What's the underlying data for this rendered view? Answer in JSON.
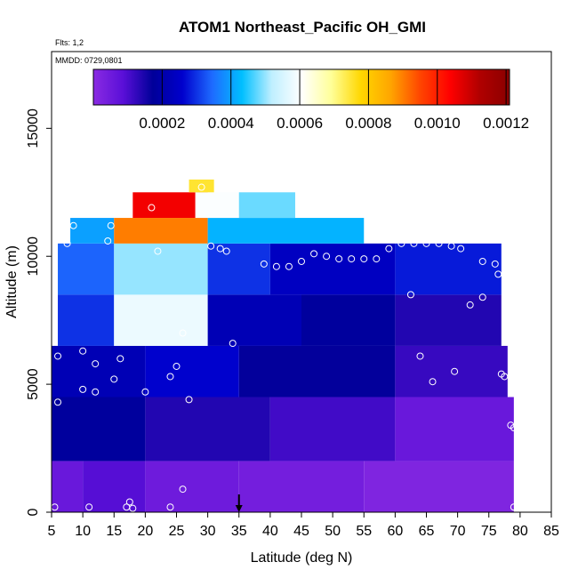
{
  "chart_data": {
    "type": "heatmap",
    "title": "ATOM1 Northeast_Pacific OH_GMI",
    "annotations": [
      "Flts: 1,2",
      "MMDD: 0729,0801"
    ],
    "xlabel": "Latitude (deg N)",
    "ylabel": "Altitude (m)",
    "xlim": [
      5,
      85
    ],
    "ylim": [
      0,
      18000
    ],
    "x_ticks": [
      "5",
      "10",
      "15",
      "20",
      "25",
      "30",
      "35",
      "40",
      "45",
      "50",
      "55",
      "60",
      "65",
      "70",
      "75",
      "80",
      "85"
    ],
    "y_ticks": [
      "0",
      "5000",
      "10000",
      "15000"
    ],
    "colorbar": {
      "range": [
        0,
        0.00121
      ],
      "tick_labels": [
        "0.0002",
        "0.0004",
        "0.0006",
        "0.0008",
        "0.0010",
        "0.0012"
      ],
      "tick_values": [
        0.0002,
        0.0004,
        0.0006,
        0.0008,
        0.001,
        0.0012
      ],
      "colors": [
        "#8a2be2",
        "#5a0fd8",
        "#000099",
        "#0000cd",
        "#1e6bff",
        "#00bfff",
        "#bfefff",
        "#ffffff",
        "#ffff99",
        "#ffd700",
        "#ffa500",
        "#ff4500",
        "#ff0000",
        "#b00000",
        "#8b0000"
      ]
    },
    "grid": false,
    "flight_marker_latitude": 35,
    "cells": [
      {
        "lat": [
          5,
          10
        ],
        "alt": [
          0,
          2000
        ],
        "value": 6e-05
      },
      {
        "lat": [
          10,
          20
        ],
        "alt": [
          0,
          2000
        ],
        "value": 9e-05
      },
      {
        "lat": [
          20,
          35
        ],
        "alt": [
          0,
          2000
        ],
        "value": 5e-05
      },
      {
        "lat": [
          35,
          55
        ],
        "alt": [
          0,
          2000
        ],
        "value": 4e-05
      },
      {
        "lat": [
          55,
          79
        ],
        "alt": [
          0,
          2000
        ],
        "value": 2e-05
      },
      {
        "lat": [
          5,
          20
        ],
        "alt": [
          2000,
          4500
        ],
        "value": 0.00018
      },
      {
        "lat": [
          20,
          40
        ],
        "alt": [
          2000,
          4500
        ],
        "value": 0.00014
      },
      {
        "lat": [
          40,
          60
        ],
        "alt": [
          2000,
          4500
        ],
        "value": 0.00011
      },
      {
        "lat": [
          60,
          79
        ],
        "alt": [
          2000,
          4500
        ],
        "value": 6e-05
      },
      {
        "lat": [
          5,
          20
        ],
        "alt": [
          4500,
          6500
        ],
        "value": 0.00022
      },
      {
        "lat": [
          20,
          35
        ],
        "alt": [
          4500,
          6500
        ],
        "value": 0.00026
      },
      {
        "lat": [
          35,
          60
        ],
        "alt": [
          4500,
          6500
        ],
        "value": 0.00017
      },
      {
        "lat": [
          60,
          78
        ],
        "alt": [
          4500,
          6500
        ],
        "value": 0.00012
      },
      {
        "lat": [
          6,
          15
        ],
        "alt": [
          6500,
          8500
        ],
        "value": 0.0003
      },
      {
        "lat": [
          15,
          30
        ],
        "alt": [
          6500,
          8500
        ],
        "value": 0.00058
      },
      {
        "lat": [
          30,
          45
        ],
        "alt": [
          6500,
          8500
        ],
        "value": 0.00022
      },
      {
        "lat": [
          45,
          60
        ],
        "alt": [
          6500,
          8500
        ],
        "value": 0.00018
      },
      {
        "lat": [
          60,
          77
        ],
        "alt": [
          6500,
          8500
        ],
        "value": 0.00014
      },
      {
        "lat": [
          6,
          15
        ],
        "alt": [
          8500,
          10500
        ],
        "value": 0.00034
      },
      {
        "lat": [
          15,
          30
        ],
        "alt": [
          8500,
          10500
        ],
        "value": 0.0005
      },
      {
        "lat": [
          30,
          40
        ],
        "alt": [
          8500,
          10500
        ],
        "value": 0.0003
      },
      {
        "lat": [
          40,
          60
        ],
        "alt": [
          8500,
          10500
        ],
        "value": 0.00024
      },
      {
        "lat": [
          60,
          77
        ],
        "alt": [
          8500,
          10500
        ],
        "value": 0.00028
      },
      {
        "lat": [
          8,
          15
        ],
        "alt": [
          10500,
          11500
        ],
        "value": 0.0004
      },
      {
        "lat": [
          15,
          30
        ],
        "alt": [
          10500,
          11500
        ],
        "value": 0.0009
      },
      {
        "lat": [
          30,
          55
        ],
        "alt": [
          10500,
          11500
        ],
        "value": 0.00042
      },
      {
        "lat": [
          18,
          30
        ],
        "alt": [
          11500,
          12500
        ],
        "value": 0.00105
      },
      {
        "lat": [
          28,
          35
        ],
        "alt": [
          11500,
          12500
        ],
        "value": 0.0006
      },
      {
        "lat": [
          35,
          44
        ],
        "alt": [
          11500,
          12500
        ],
        "value": 0.00048
      },
      {
        "lat": [
          27,
          31
        ],
        "alt": [
          12500,
          13000
        ],
        "value": 0.00075
      }
    ],
    "points": [
      {
        "lat": 5.5,
        "alt": 200
      },
      {
        "lat": 11,
        "alt": 200
      },
      {
        "lat": 17,
        "alt": 200
      },
      {
        "lat": 18,
        "alt": 150
      },
      {
        "lat": 17.5,
        "alt": 400
      },
      {
        "lat": 24,
        "alt": 200
      },
      {
        "lat": 26,
        "alt": 900
      },
      {
        "lat": 6,
        "alt": 4300
      },
      {
        "lat": 10,
        "alt": 4800
      },
      {
        "lat": 12,
        "alt": 4700
      },
      {
        "lat": 20,
        "alt": 4700
      },
      {
        "lat": 15,
        "alt": 5200
      },
      {
        "lat": 24,
        "alt": 5300
      },
      {
        "lat": 25,
        "alt": 5700
      },
      {
        "lat": 27,
        "alt": 4400
      },
      {
        "lat": 6,
        "alt": 6100
      },
      {
        "lat": 10,
        "alt": 6300
      },
      {
        "lat": 12,
        "alt": 5800
      },
      {
        "lat": 16,
        "alt": 6000
      },
      {
        "lat": 26,
        "alt": 7000
      },
      {
        "lat": 34,
        "alt": 6600
      },
      {
        "lat": 7.5,
        "alt": 10500
      },
      {
        "lat": 8.5,
        "alt": 11200
      },
      {
        "lat": 14,
        "alt": 10600
      },
      {
        "lat": 14.5,
        "alt": 11200
      },
      {
        "lat": 21,
        "alt": 11900
      },
      {
        "lat": 22,
        "alt": 10200
      },
      {
        "lat": 29,
        "alt": 12700
      },
      {
        "lat": 30.5,
        "alt": 10400
      },
      {
        "lat": 32,
        "alt": 10300
      },
      {
        "lat": 33,
        "alt": 10200
      },
      {
        "lat": 39,
        "alt": 9700
      },
      {
        "lat": 41,
        "alt": 9600
      },
      {
        "lat": 43,
        "alt": 9600
      },
      {
        "lat": 45,
        "alt": 9800
      },
      {
        "lat": 47,
        "alt": 10100
      },
      {
        "lat": 49,
        "alt": 10000
      },
      {
        "lat": 51,
        "alt": 9900
      },
      {
        "lat": 53,
        "alt": 9900
      },
      {
        "lat": 55,
        "alt": 9900
      },
      {
        "lat": 57,
        "alt": 9900
      },
      {
        "lat": 59,
        "alt": 10300
      },
      {
        "lat": 61,
        "alt": 10500
      },
      {
        "lat": 63,
        "alt": 10500
      },
      {
        "lat": 65,
        "alt": 10500
      },
      {
        "lat": 67,
        "alt": 10500
      },
      {
        "lat": 67.5,
        "alt": 11300
      },
      {
        "lat": 69,
        "alt": 10400
      },
      {
        "lat": 70.5,
        "alt": 10300
      },
      {
        "lat": 74,
        "alt": 9800
      },
      {
        "lat": 76,
        "alt": 9700
      },
      {
        "lat": 76.5,
        "alt": 9300
      },
      {
        "lat": 62.5,
        "alt": 8500
      },
      {
        "lat": 72,
        "alt": 8100
      },
      {
        "lat": 74,
        "alt": 8400
      },
      {
        "lat": 64,
        "alt": 6100
      },
      {
        "lat": 66,
        "alt": 5100
      },
      {
        "lat": 69.5,
        "alt": 5500
      },
      {
        "lat": 77,
        "alt": 5400
      },
      {
        "lat": 77.5,
        "alt": 5300
      },
      {
        "lat": 78.5,
        "alt": 3400
      },
      {
        "lat": 79,
        "alt": 3300
      },
      {
        "lat": 79,
        "alt": 200
      }
    ]
  }
}
